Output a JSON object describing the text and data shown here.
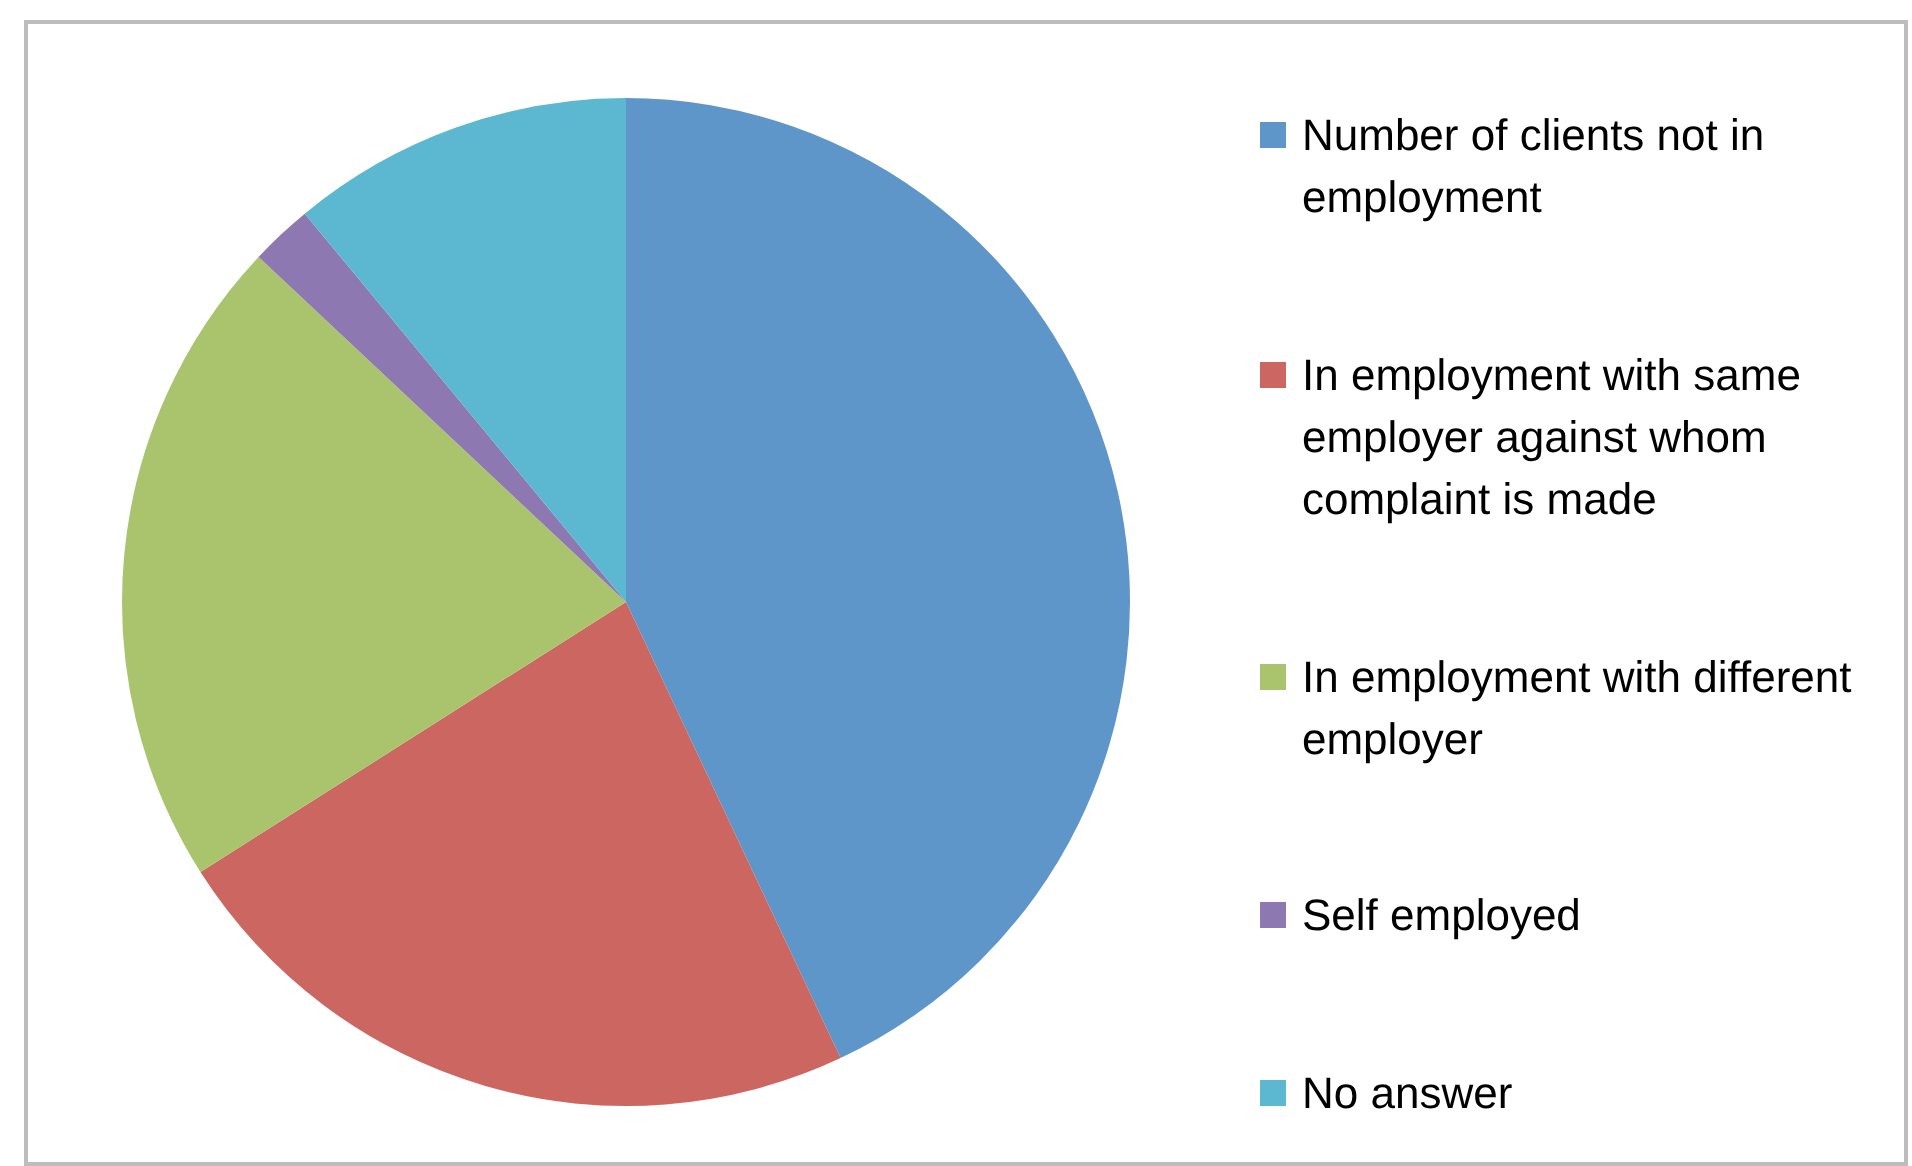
{
  "chart_data": {
    "type": "pie",
    "categories": [
      "Number of clients not in employment",
      "In employment with same employer against whom complaint is made",
      "In employment with different employer",
      "Self employed",
      "No answer"
    ],
    "values": [
      43,
      23,
      21,
      2,
      11
    ],
    "colors": [
      "#5f96c9",
      "#cc6660",
      "#aac46d",
      "#8e78b1",
      "#5bb8d0"
    ],
    "legend": "right"
  }
}
